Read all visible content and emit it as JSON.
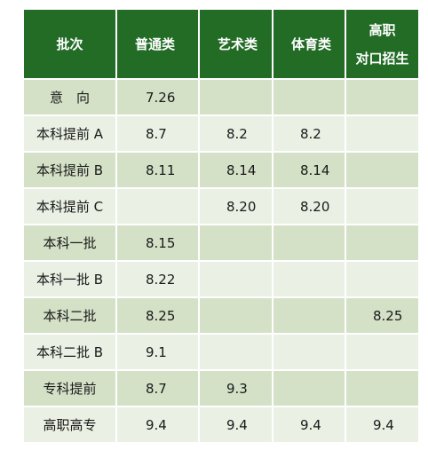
{
  "table": {
    "headers": {
      "batch": "批次",
      "general": "普通类",
      "art": "艺术类",
      "sports": "体育类",
      "vocational_line1": "高职",
      "vocational_line2": "对口招生"
    },
    "rows": [
      {
        "batch": "意　向",
        "general": "7.26",
        "art": "",
        "sports": "",
        "vocational": ""
      },
      {
        "batch": "本科提前 A",
        "general": "8.7",
        "art": "8.2",
        "sports": "8.2",
        "vocational": ""
      },
      {
        "batch": "本科提前 B",
        "general": "8.11",
        "art": "8.14",
        "sports": "8.14",
        "vocational": ""
      },
      {
        "batch": "本科提前 C",
        "general": "",
        "art": "8.20",
        "sports": "8.20",
        "vocational": ""
      },
      {
        "batch": "本科一批",
        "general": "8.15",
        "art": "",
        "sports": "",
        "vocational": ""
      },
      {
        "batch": "本科一批 B",
        "general": "8.22",
        "art": "",
        "sports": "",
        "vocational": ""
      },
      {
        "batch": "本科二批",
        "general": "8.25",
        "art": "",
        "sports": "",
        "vocational": "8.25"
      },
      {
        "batch": "本科二批 B",
        "general": "9.1",
        "art": "",
        "sports": "",
        "vocational": ""
      },
      {
        "batch": "专科提前",
        "general": "8.7",
        "art": "9.3",
        "sports": "",
        "vocational": ""
      },
      {
        "batch": "高职高专",
        "general": "9.4",
        "art": "9.4",
        "sports": "9.4",
        "vocational": "9.4"
      }
    ]
  },
  "colors": {
    "header_bg": "#226c26",
    "row_dark": "#d4e1c7",
    "row_light": "#eaf0e4"
  }
}
